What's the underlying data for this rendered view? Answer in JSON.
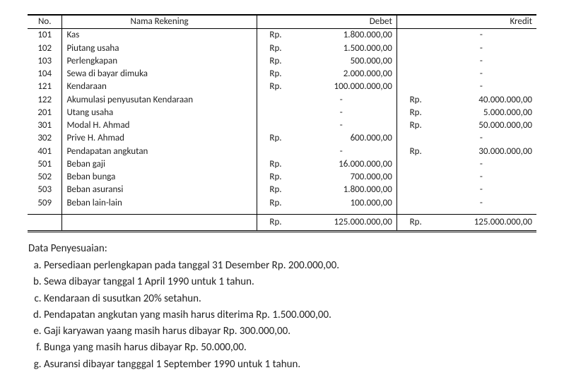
{
  "table": {
    "headers": {
      "no": "No.",
      "name": "Nama Rekening",
      "debit": "Debet",
      "credit": "Kredit"
    },
    "currency": "Rp.",
    "rows": [
      {
        "no": "101",
        "name": "Kas",
        "debit": "1.800.000,00",
        "credit": "-"
      },
      {
        "no": "102",
        "name": "Piutang usaha",
        "debit": "1.500.000,00",
        "credit": "-"
      },
      {
        "no": "103",
        "name": "Perlengkapan",
        "debit": "500.000,00",
        "credit": "-"
      },
      {
        "no": "104",
        "name": "Sewa di bayar dimuka",
        "debit": "2.000.000,00",
        "credit": "-"
      },
      {
        "no": "121",
        "name": "Kendaraan",
        "debit": "100.000.000,00",
        "credit": "-"
      },
      {
        "no": "122",
        "name": "Akumulasi penyusutan Kendaraan",
        "debit": "-",
        "credit": "40.000.000,00"
      },
      {
        "no": "201",
        "name": "Utang usaha",
        "debit": "-",
        "credit": "5.000.000,00"
      },
      {
        "no": "301",
        "name": "Modal H. Ahmad",
        "debit": "-",
        "credit": "50.000.000,00"
      },
      {
        "no": "302",
        "name": "Prive H. Ahmad",
        "debit": "600.000,00",
        "credit": "-"
      },
      {
        "no": "401",
        "name": "Pendapatan angkutan",
        "debit": "-",
        "credit": "30.000.000,00"
      },
      {
        "no": "501",
        "name": "Beban gaji",
        "debit": "16.000.000,00",
        "credit": "-"
      },
      {
        "no": "502",
        "name": "Beban bunga",
        "debit": "700.000,00",
        "credit": "-"
      },
      {
        "no": "503",
        "name": "Beban asuransi",
        "debit": "1.800.000,00",
        "credit": "-"
      },
      {
        "no": "509",
        "name": "Beban lain-lain",
        "debit": "100.000,00",
        "credit": "-"
      }
    ],
    "total": {
      "debit": "125.000.000,00",
      "credit": "125.000.000,00"
    }
  },
  "adjustment": {
    "title": "Data Penyesuaian:",
    "items": [
      "Persediaan perlengkapan pada tanggal 31 Desember Rp. 200.000,00.",
      "Sewa dibayar tanggal 1 April 1990 untuk 1 tahun.",
      "Kendaraan di susutkan 20% setahun.",
      "Pendapatan angkutan yang masih harus diterima Rp. 1.500.000,00.",
      "Gaji karyawan yaang masih harus dibayar Rp. 300.000,00.",
      "Bunga yang masih harus dibayar Rp. 50.000,00.",
      "Asuransi dibayar tangggal 1 September 1990 untuk 1 tahun."
    ]
  }
}
